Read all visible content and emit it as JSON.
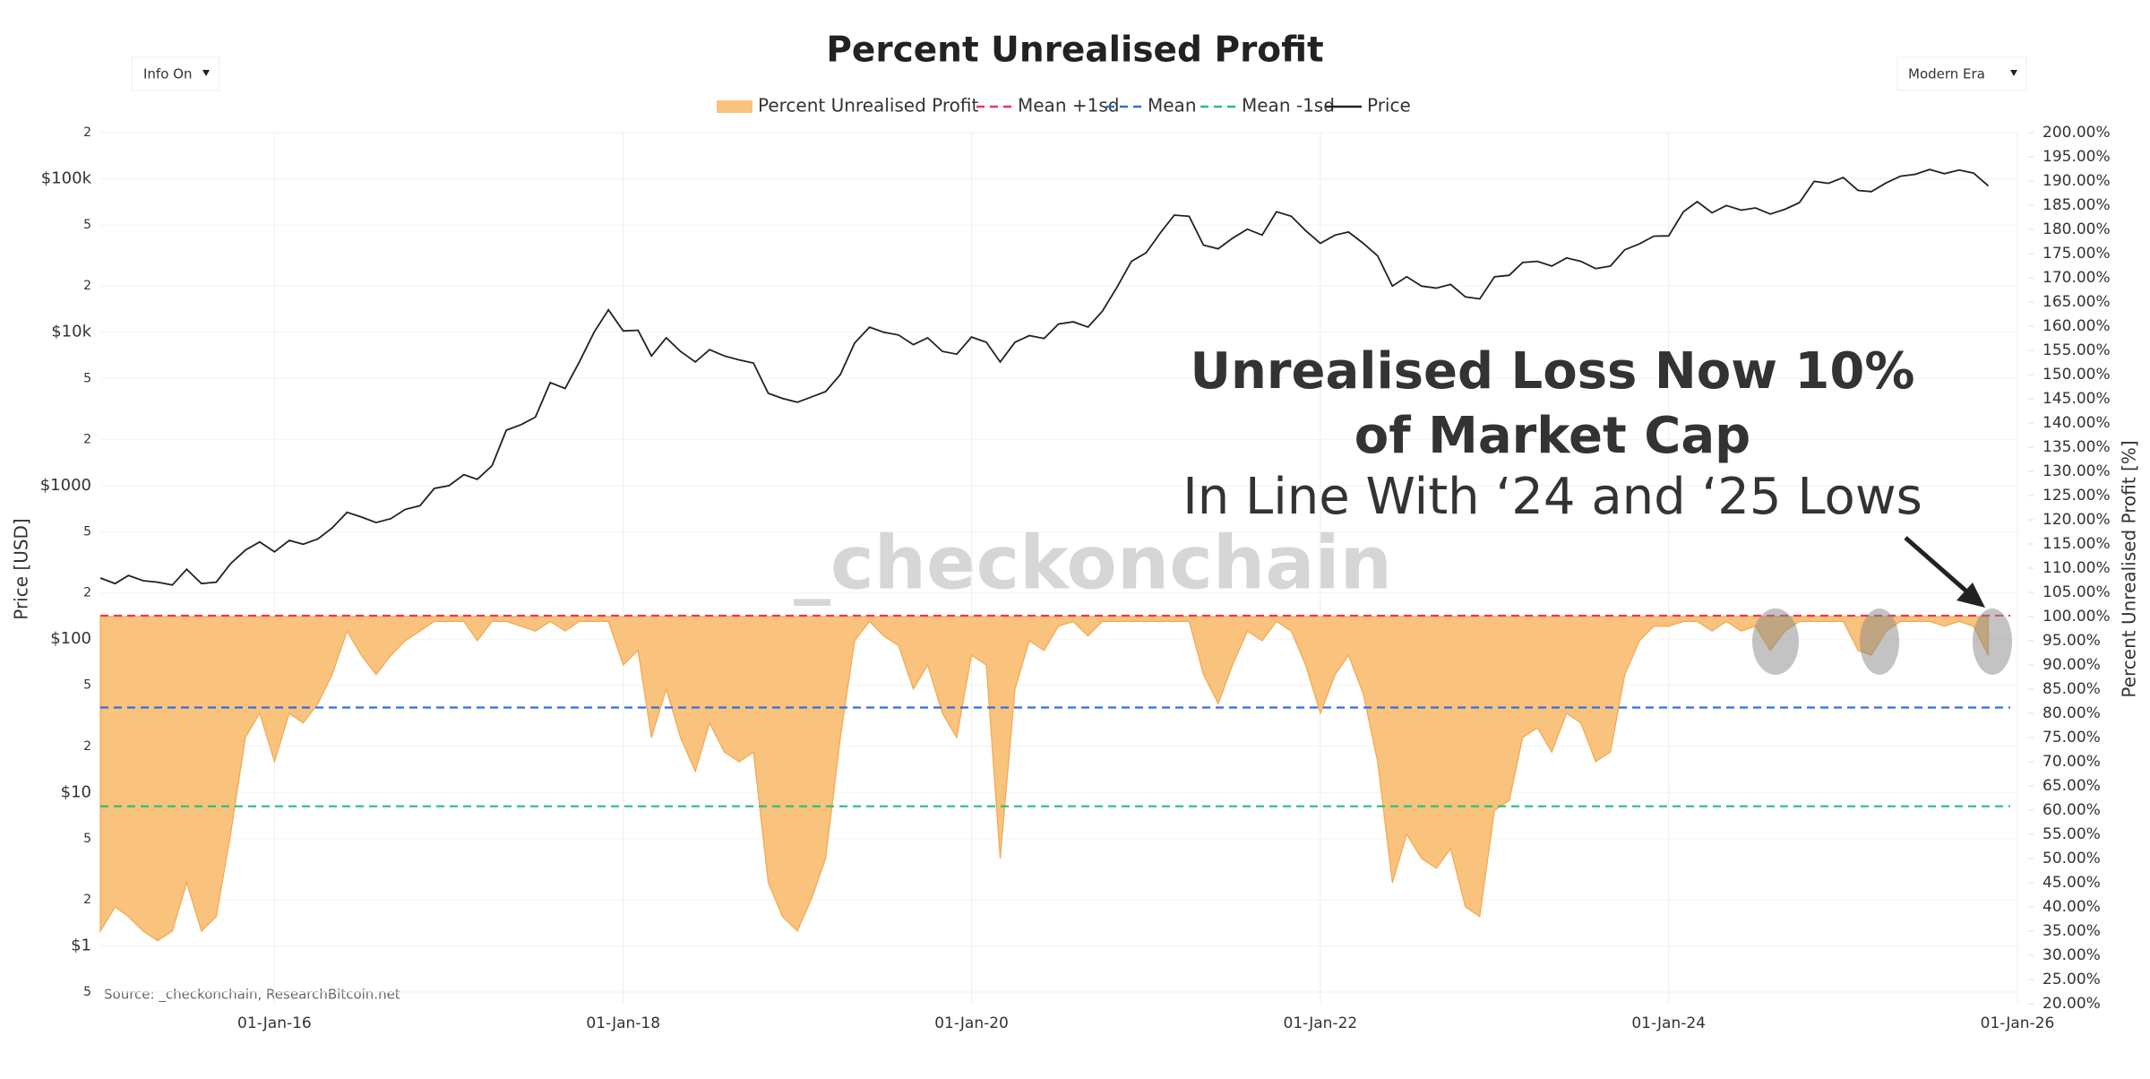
{
  "controls": {
    "left": "Info On",
    "right": "Modern Era"
  },
  "chart_data": {
    "type": "line",
    "title": "Percent Unrealised Profit",
    "ylabel": "Price [USD]",
    "y2label": "Percent Unrealised Profit [%]",
    "source": "Source: _checkonchain, ResearchBitcoin.net",
    "watermark": "_checkonchain",
    "annotations": [
      "Unrealised Loss Now 10%",
      "of Market Cap",
      "In Line With ‘24 and ‘25 Lows"
    ],
    "ylog": true,
    "grid": true,
    "legend": "top",
    "xlim": [
      "2015-01-01",
      "2026-01-01"
    ],
    "xticks": [
      {
        "value": "2016-01-01",
        "label": "01-Jan-16"
      },
      {
        "value": "2018-01-01",
        "label": "01-Jan-18"
      },
      {
        "value": "2020-01-01",
        "label": "01-Jan-20"
      },
      {
        "value": "2022-01-01",
        "label": "01-Jan-22"
      },
      {
        "value": "2024-01-01",
        "label": "01-Jan-24"
      },
      {
        "value": "2026-01-01",
        "label": "01-Jan-26"
      }
    ],
    "ylim": [
      0.42,
      200000
    ],
    "yticks": [
      {
        "value": 0.5,
        "label": "5"
      },
      {
        "value": 1,
        "label": "$1"
      },
      2,
      5,
      {
        "value": 10,
        "label": "$10"
      },
      {
        "value": 20,
        "label": "2"
      },
      {
        "value": 50,
        "label": "5"
      },
      {
        "value": 100,
        "label": "$100"
      },
      {
        "value": 200,
        "label": "2"
      },
      {
        "value": 500,
        "label": "5"
      },
      {
        "value": 1000,
        "label": "$1000"
      },
      {
        "value": 2000,
        "label": "2"
      },
      {
        "value": 5000,
        "label": "5"
      },
      {
        "value": 10000,
        "label": "$10k"
      },
      {
        "value": 20000,
        "label": "2"
      },
      {
        "value": 50000,
        "label": "5"
      },
      {
        "value": 100000,
        "label": "$100k"
      },
      {
        "value": 200000,
        "label": "2"
      }
    ],
    "y2lim": [
      20,
      200
    ],
    "y2ticks": [
      {
        "value": 20,
        "label": "20.00%"
      },
      {
        "value": 25,
        "label": "25.00%"
      },
      {
        "value": 30,
        "label": "30.00%"
      },
      {
        "value": 35,
        "label": "35.00%"
      },
      {
        "value": 40,
        "label": "40.00%"
      },
      {
        "value": 45,
        "label": "45.00%"
      },
      {
        "value": 50,
        "label": "50.00%"
      },
      {
        "value": 55,
        "label": "55.00%"
      },
      {
        "value": 60,
        "label": "60.00%"
      },
      {
        "value": 65,
        "label": "65.00%"
      },
      {
        "value": 70,
        "label": "70.00%"
      },
      {
        "value": 75,
        "label": "75.00%"
      },
      {
        "value": 80,
        "label": "80.00%"
      },
      {
        "value": 85,
        "label": "85.00%"
      },
      {
        "value": 90,
        "label": "90.00%"
      },
      {
        "value": 95,
        "label": "95.00%"
      },
      {
        "value": 100,
        "label": "100.00%"
      },
      {
        "value": 105,
        "label": "105.00%"
      },
      {
        "value": 110,
        "label": "110.00%"
      },
      {
        "value": 115,
        "label": "115.00%"
      },
      {
        "value": 120,
        "label": "120.00%"
      },
      {
        "value": 125,
        "label": "125.00%"
      },
      {
        "value": 130,
        "label": "130.00%"
      },
      {
        "value": 135,
        "label": "135.00%"
      },
      {
        "value": 140,
        "label": "140.00%"
      },
      {
        "value": 145,
        "label": "145.00%"
      },
      {
        "value": 150,
        "label": "150.00%"
      },
      {
        "value": 155,
        "label": "155.00%"
      },
      {
        "value": 160,
        "label": "160.00%"
      },
      {
        "value": 165,
        "label": "165.00%"
      },
      {
        "value": 170,
        "label": "170.00%"
      },
      {
        "value": 175,
        "label": "175.00%"
      },
      {
        "value": 180,
        "label": "180.00%"
      },
      {
        "value": 185,
        "label": "185.00%"
      },
      {
        "value": 190,
        "label": "190.00%"
      },
      {
        "value": 195,
        "label": "195.00%"
      },
      {
        "value": 200,
        "label": "200.00%"
      }
    ],
    "x": [
      "2015-01-01",
      "2015-02-01",
      "2015-03-01",
      "2015-04-01",
      "2015-05-01",
      "2015-06-01",
      "2015-07-01",
      "2015-08-01",
      "2015-09-01",
      "2015-10-01",
      "2015-11-01",
      "2015-12-01",
      "2016-01-01",
      "2016-02-01",
      "2016-03-01",
      "2016-04-01",
      "2016-05-01",
      "2016-06-01",
      "2016-07-01",
      "2016-08-01",
      "2016-09-01",
      "2016-10-01",
      "2016-11-01",
      "2016-12-01",
      "2017-01-01",
      "2017-02-01",
      "2017-03-01",
      "2017-04-01",
      "2017-05-01",
      "2017-06-01",
      "2017-07-01",
      "2017-08-01",
      "2017-09-01",
      "2017-10-01",
      "2017-11-01",
      "2017-12-01",
      "2018-01-01",
      "2018-02-01",
      "2018-03-01",
      "2018-04-01",
      "2018-05-01",
      "2018-06-01",
      "2018-07-01",
      "2018-08-01",
      "2018-09-01",
      "2018-10-01",
      "2018-11-01",
      "2018-12-01",
      "2019-01-01",
      "2019-02-01",
      "2019-03-01",
      "2019-04-01",
      "2019-05-01",
      "2019-06-01",
      "2019-07-01",
      "2019-08-01",
      "2019-09-01",
      "2019-10-01",
      "2019-11-01",
      "2019-12-01",
      "2020-01-01",
      "2020-02-01",
      "2020-03-01",
      "2020-04-01",
      "2020-05-01",
      "2020-06-01",
      "2020-07-01",
      "2020-08-01",
      "2020-09-01",
      "2020-10-01",
      "2020-11-01",
      "2020-12-01",
      "2021-01-01",
      "2021-02-01",
      "2021-03-01",
      "2021-04-01",
      "2021-05-01",
      "2021-06-01",
      "2021-07-01",
      "2021-08-01",
      "2021-09-01",
      "2021-10-01",
      "2021-11-01",
      "2021-12-01",
      "2022-01-01",
      "2022-02-01",
      "2022-03-01",
      "2022-04-01",
      "2022-05-01",
      "2022-06-01",
      "2022-07-01",
      "2022-08-01",
      "2022-09-01",
      "2022-10-01",
      "2022-11-01",
      "2022-12-01",
      "2023-01-01",
      "2023-02-01",
      "2023-03-01",
      "2023-04-01",
      "2023-05-01",
      "2023-06-01",
      "2023-07-01",
      "2023-08-01",
      "2023-09-01",
      "2023-10-01",
      "2023-11-01",
      "2023-12-01",
      "2024-01-01",
      "2024-02-01",
      "2024-03-01",
      "2024-04-01",
      "2024-05-01",
      "2024-06-01",
      "2024-07-01",
      "2024-08-01",
      "2024-09-01",
      "2024-10-01",
      "2024-11-01",
      "2024-12-01",
      "2025-01-01",
      "2025-02-01",
      "2025-03-01",
      "2025-04-01",
      "2025-05-01",
      "2025-06-01",
      "2025-07-01",
      "2025-08-01",
      "2025-09-01",
      "2025-10-01",
      "2025-11-01"
    ],
    "series": [
      {
        "name": "Percent Unrealised Profit",
        "color": "#f9c27d",
        "axis": "y2",
        "fill_to": 100,
        "values": [
          35,
          40,
          38,
          35,
          33,
          35,
          45,
          35,
          38,
          55,
          75,
          80,
          70,
          80,
          78,
          82,
          88,
          97,
          92,
          88,
          92,
          95,
          97,
          99,
          99,
          99,
          95,
          99,
          99,
          98,
          97,
          99,
          97,
          99,
          99,
          99,
          90,
          93,
          75,
          85,
          75,
          68,
          78,
          72,
          70,
          72,
          45,
          38,
          35,
          42,
          50,
          75,
          95,
          99,
          96,
          94,
          85,
          90,
          80,
          75,
          92,
          90,
          50,
          85,
          95,
          93,
          98,
          99,
          96,
          99,
          99,
          99,
          99,
          99,
          99,
          99,
          88,
          82,
          90,
          97,
          95,
          99,
          97,
          90,
          80,
          88,
          92,
          84,
          70,
          45,
          55,
          50,
          48,
          52,
          40,
          38,
          60,
          62,
          75,
          77,
          72,
          80,
          78,
          70,
          72,
          88,
          95,
          98,
          98,
          99,
          99,
          97,
          99,
          97,
          98,
          93,
          97,
          99,
          99,
          99,
          99,
          93,
          92,
          97,
          99,
          99,
          99,
          98,
          99,
          98,
          92
        ]
      },
      {
        "name": "Mean +1sd",
        "color": "#e8365f",
        "axis": "y2",
        "dash": true,
        "value": 100.2
      },
      {
        "name": "Mean",
        "color": "#2f6fe0",
        "axis": "y2",
        "dash": true,
        "value": 81.2
      },
      {
        "name": "Mean -1sd",
        "color": "#22c07a",
        "axis": "y2",
        "dash": true,
        "value": 60.8
      },
      {
        "name": "Price",
        "color": "#222222",
        "values": [
          250,
          230,
          260,
          240,
          235,
          225,
          285,
          230,
          235,
          310,
          380,
          430,
          370,
          440,
          415,
          450,
          530,
          670,
          625,
          575,
          610,
          700,
          740,
          960,
          1000,
          1180,
          1100,
          1350,
          2300,
          2500,
          2800,
          4700,
          4300,
          6400,
          10000,
          14000,
          10200,
          10300,
          7000,
          9200,
          7500,
          6400,
          7700,
          7000,
          6600,
          6300,
          4000,
          3700,
          3500,
          3800,
          4100,
          5300,
          8500,
          10800,
          10000,
          9600,
          8300,
          9200,
          7500,
          7200,
          9300,
          8600,
          6400,
          8600,
          9500,
          9100,
          11300,
          11700,
          10800,
          13700,
          19700,
          29000,
          33000,
          45000,
          58000,
          57000,
          37000,
          35000,
          41000,
          47000,
          43000,
          61000,
          57000,
          46000,
          38000,
          43000,
          45000,
          38000,
          31500,
          20000,
          23000,
          20000,
          19400,
          20500,
          17000,
          16500,
          23000,
          23500,
          28500,
          29000,
          27000,
          30500,
          29000,
          26000,
          27000,
          34500,
          37700,
          42300,
          42500,
          61000,
          71000,
          60000,
          67000,
          62500,
          64600,
          59000,
          63300,
          70000,
          96400,
          93400,
          102000,
          84000,
          82500,
          94000,
          104000,
          107000,
          115000,
          108000,
          114000,
          109000,
          90000
        ]
      }
    ]
  }
}
